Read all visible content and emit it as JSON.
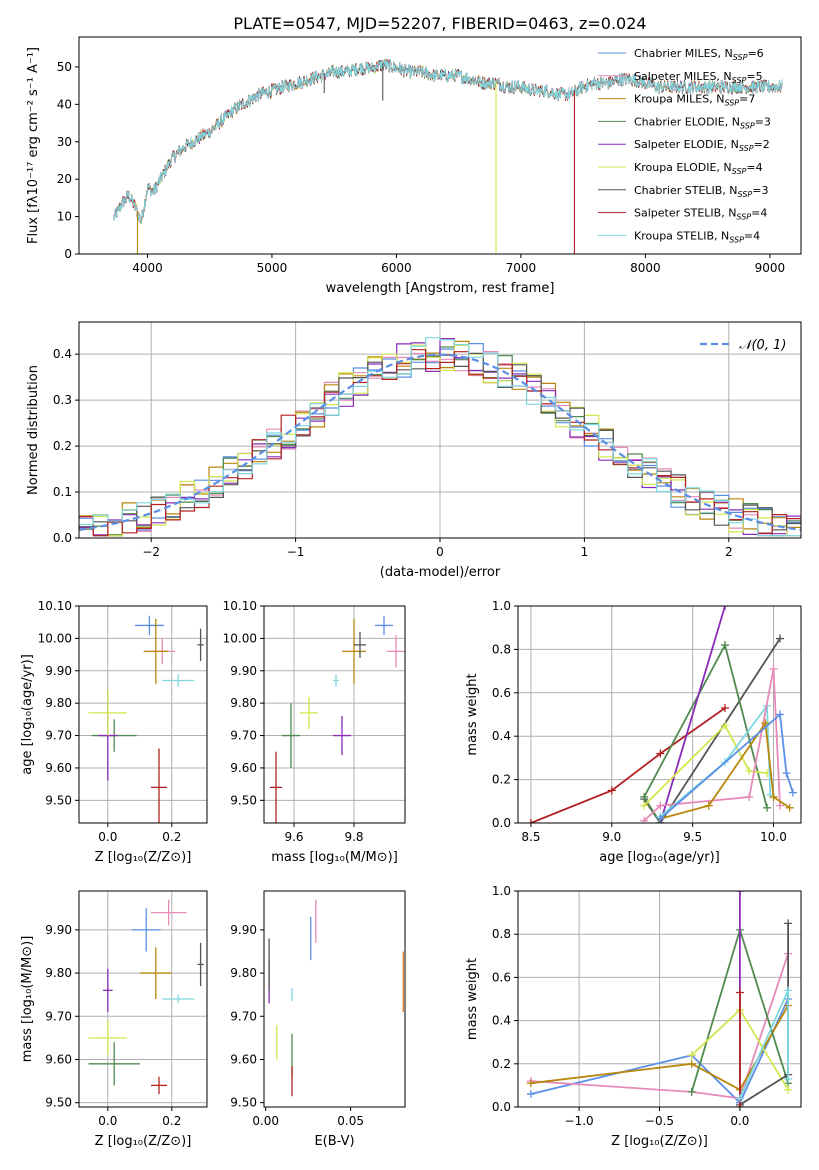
{
  "title": "PLATE=0547, MJD=52207, FIBERID=0463, z=0.024",
  "colors": {
    "Chabrier MILES": "#5b8ee6",
    "Salpeter MILES": "#e68ab8",
    "Kroupa MILES": "#b8860b",
    "Chabrier ELODIE": "#4f8a4f",
    "Salpeter ELODIE": "#8b2bb8",
    "Kroupa ELODIE": "#d4e64f",
    "Chabrier STELIB": "#555555",
    "Salpeter STELIB": "#b22222",
    "Kroupa STELIB": "#7fd8e0",
    "orange": "#e07b2a",
    "gaussian": "#5b8ee6",
    "grid": "#b0b0b0"
  },
  "chart_data": [
    {
      "id": "spectrum",
      "type": "line",
      "xlabel": "wavelength [Angstrom, rest frame]",
      "ylabel": "Flux [fλ10⁻¹⁷ erg cm⁻² s⁻¹ A⁻¹]",
      "xlim": [
        3450,
        9250
      ],
      "ylim": [
        0,
        58
      ],
      "xticks": [
        4000,
        5000,
        6000,
        7000,
        8000,
        9000
      ],
      "yticks": [
        0,
        10,
        20,
        30,
        40,
        50
      ],
      "grid": false,
      "legend_position": "top-right",
      "legend": [
        {
          "label": "Chabrier MILES, N",
          "sub": "SSP",
          "eq": "=6"
        },
        {
          "label": "Salpeter MILES, N",
          "sub": "SSP",
          "eq": "=5"
        },
        {
          "label": "Kroupa MILES, N",
          "sub": "SSP",
          "eq": "=7"
        },
        {
          "label": "Chabrier ELODIE, N",
          "sub": "SSP",
          "eq": "=3"
        },
        {
          "label": "Salpeter ELODIE, N",
          "sub": "SSP",
          "eq": "=2"
        },
        {
          "label": "Kroupa ELODIE, N",
          "sub": "SSP",
          "eq": "=4"
        },
        {
          "label": "Chabrier STELIB, N",
          "sub": "SSP",
          "eq": "=3"
        },
        {
          "label": "Salpeter STELIB, N",
          "sub": "SSP",
          "eq": "=4"
        },
        {
          "label": "Kroupa STELIB, N",
          "sub": "SSP",
          "eq": "=4"
        }
      ],
      "continuum": {
        "x": [
          3730,
          3800,
          3850,
          3900,
          3950,
          4000,
          4050,
          4100,
          4200,
          4300,
          4400,
          4500,
          4600,
          4700,
          4800,
          4900,
          5000,
          5100,
          5200,
          5300,
          5400,
          5500,
          5600,
          5700,
          5800,
          5900,
          6000,
          6100,
          6200,
          6300,
          6400,
          6500,
          6600,
          6700,
          6800,
          6900,
          7000,
          7100,
          7200,
          7300,
          7400,
          7500,
          7600,
          7700,
          7800,
          7900,
          8000,
          8100,
          8200,
          8300,
          8400,
          8500,
          8600,
          8700,
          8800,
          8900,
          9000,
          9100
        ],
        "y": [
          10,
          14,
          16,
          13,
          9,
          18,
          17,
          20,
          26,
          29,
          31,
          33,
          36,
          39,
          41,
          43,
          44,
          45,
          46,
          47,
          48,
          49,
          49,
          50,
          50,
          51,
          50,
          49,
          49,
          48,
          48,
          48,
          47,
          46,
          46,
          45,
          45,
          44,
          44,
          43,
          43,
          45,
          46,
          46,
          47,
          47,
          46,
          45,
          45,
          45,
          45,
          45,
          45,
          45,
          45,
          45,
          45,
          45
        ]
      },
      "spikes": [
        {
          "x": 3920,
          "y": 0,
          "series": "Kroupa MILES"
        },
        {
          "x": 5420,
          "y": 43,
          "series": "Chabrier STELIB"
        },
        {
          "x": 5890,
          "y": 41,
          "series": "Chabrier STELIB"
        },
        {
          "x": 6800,
          "y": 0,
          "series": "Kroupa ELODIE"
        },
        {
          "x": 7430,
          "y": 0,
          "series": "Salpeter STELIB"
        }
      ]
    },
    {
      "id": "residuals",
      "type": "histogram",
      "xlabel": "(data-model)/error",
      "ylabel": "Normed distribution",
      "xlim": [
        -2.5,
        2.5
      ],
      "ylim": [
        0,
        0.47
      ],
      "xticks": [
        -2,
        -1,
        0,
        1,
        2
      ],
      "yticks": [
        0.0,
        0.1,
        0.2,
        0.3,
        0.4
      ],
      "grid": true,
      "bin_width": 0.1,
      "legend": [
        "𝒩(0, 1)"
      ],
      "gaussian": {
        "mu": 0,
        "sigma": 1
      }
    },
    {
      "id": "age_vs_Z",
      "type": "errorbar",
      "xlabel": "Z [log₁₀(Z/Z⊙)]",
      "ylabel": "age  [log₁₀(age/yr)]",
      "xlim": [
        -0.09,
        0.31
      ],
      "ylim": [
        9.43,
        10.1
      ],
      "xticks": [
        0.0,
        0.2
      ],
      "yticks": [
        9.5,
        9.6,
        9.7,
        9.8,
        9.9,
        10.0,
        10.1
      ],
      "grid": true,
      "points": [
        {
          "series": "Chabrier MILES",
          "x": 0.13,
          "y": 10.04,
          "xerr": 0.045,
          "yerr": 0.03
        },
        {
          "series": "Salpeter MILES",
          "x": 0.17,
          "y": 9.96,
          "xerr": 0.04,
          "yerr": 0.04
        },
        {
          "series": "Kroupa MILES",
          "x": 0.15,
          "y": 9.96,
          "xerr": 0.038,
          "yerr": 0.1
        },
        {
          "series": "Chabrier ELODIE",
          "x": 0.02,
          "y": 9.7,
          "xerr": 0.07,
          "yerr": 0.05
        },
        {
          "series": "Salpeter ELODIE",
          "x": 0.0,
          "y": 9.7,
          "xerr": 0.03,
          "yerr": 0.14
        },
        {
          "series": "Kroupa ELODIE",
          "x": 0.0,
          "y": 9.77,
          "xerr": 0.06,
          "yerr": 0.07
        },
        {
          "series": "Chabrier STELIB",
          "x": 0.29,
          "y": 9.98,
          "xerr": 0.01,
          "yerr": 0.05
        },
        {
          "series": "Salpeter STELIB",
          "x": 0.16,
          "y": 9.54,
          "xerr": 0.025,
          "yerr": 0.12
        },
        {
          "series": "Kroupa STELIB",
          "x": 0.22,
          "y": 9.87,
          "xerr": 0.05,
          "yerr": 0.02
        }
      ]
    },
    {
      "id": "age_vs_mass",
      "type": "errorbar",
      "xlabel": "mass [log₁₀(M/M⊙)]",
      "ylabel": "",
      "xlim": [
        9.5,
        9.97
      ],
      "ylim": [
        9.43,
        10.1
      ],
      "xticks": [
        9.6,
        9.8
      ],
      "yticks": [
        9.5,
        9.6,
        9.7,
        9.8,
        9.9,
        10.0,
        10.1
      ],
      "grid": true,
      "points": [
        {
          "series": "Chabrier MILES",
          "x": 9.9,
          "y": 10.04,
          "xerr": 0.03,
          "yerr": 0.03
        },
        {
          "series": "Salpeter MILES",
          "x": 9.94,
          "y": 9.96,
          "xerr": 0.03,
          "yerr": 0.05
        },
        {
          "series": "Kroupa MILES",
          "x": 9.8,
          "y": 9.96,
          "xerr": 0.04,
          "yerr": 0.1
        },
        {
          "series": "Chabrier ELODIE",
          "x": 9.59,
          "y": 9.7,
          "xerr": 0.03,
          "yerr": 0.1
        },
        {
          "series": "Salpeter ELODIE",
          "x": 9.76,
          "y": 9.7,
          "xerr": 0.03,
          "yerr": 0.06
        },
        {
          "series": "Kroupa ELODIE",
          "x": 9.65,
          "y": 9.77,
          "xerr": 0.03,
          "yerr": 0.05
        },
        {
          "series": "Chabrier STELIB",
          "x": 9.82,
          "y": 9.98,
          "xerr": 0.02,
          "yerr": 0.04
        },
        {
          "series": "Salpeter STELIB",
          "x": 9.54,
          "y": 9.54,
          "xerr": 0.02,
          "yerr": 0.11
        },
        {
          "series": "Kroupa STELIB",
          "x": 9.74,
          "y": 9.87,
          "xerr": 0.01,
          "yerr": 0.02
        }
      ]
    },
    {
      "id": "mass_weight_vs_age",
      "type": "line",
      "xlabel": "age  [log₁₀(age/yr)]",
      "ylabel": "mass weight",
      "xlim": [
        8.42,
        10.17
      ],
      "ylim": [
        0,
        1.0
      ],
      "xticks": [
        8.5,
        9.0,
        9.5,
        10.0
      ],
      "yticks": [
        0.0,
        0.2,
        0.4,
        0.6,
        0.8,
        1.0
      ],
      "grid": true,
      "series": [
        {
          "name": "Salpeter STELIB",
          "x": [
            8.5,
            9.0,
            9.3,
            9.7
          ],
          "y": [
            0.0,
            0.15,
            0.32,
            0.53
          ]
        },
        {
          "name": "Chabrier STELIB",
          "x": [
            9.2,
            9.3,
            10.04
          ],
          "y": [
            0.11,
            0.0,
            0.85
          ]
        },
        {
          "name": "Chabrier ELODIE",
          "x": [
            9.3,
            9.2,
            9.7,
            9.96
          ],
          "y": [
            0.0,
            0.12,
            0.82,
            0.07
          ]
        },
        {
          "name": "Salpeter ELODIE",
          "x": [
            9.3,
            9.7
          ],
          "y": [
            0.0,
            1.0
          ]
        },
        {
          "name": "Kroupa ELODIE",
          "x": [
            9.2,
            9.7,
            9.85,
            9.96
          ],
          "y": [
            0.08,
            0.45,
            0.24,
            0.23
          ]
        },
        {
          "name": "Kroupa STELIB",
          "x": [
            9.3,
            9.7,
            9.96,
            9.98
          ],
          "y": [
            0.03,
            0.28,
            0.54,
            0.13
          ]
        },
        {
          "name": "Salpeter MILES",
          "x": [
            9.2,
            9.3,
            9.85,
            10.0,
            10.04
          ],
          "y": [
            0.01,
            0.08,
            0.12,
            0.71,
            0.08
          ]
        },
        {
          "name": "Kroupa MILES",
          "x": [
            9.3,
            9.6,
            9.95,
            10.0,
            10.1
          ],
          "y": [
            0.02,
            0.08,
            0.46,
            0.12,
            0.07
          ]
        },
        {
          "name": "Chabrier MILES",
          "x": [
            9.3,
            10.04,
            10.08,
            10.12
          ],
          "y": [
            0.02,
            0.5,
            0.23,
            0.14
          ]
        }
      ]
    },
    {
      "id": "mass_vs_Z",
      "type": "errorbar",
      "xlabel": "Z [log₁₀(Z/Z⊙)]",
      "ylabel": "mass [log₁₀(M/M⊙)]",
      "xlim": [
        -0.09,
        0.31
      ],
      "ylim": [
        9.49,
        9.99
      ],
      "xticks": [
        0.0,
        0.2
      ],
      "yticks": [
        9.5,
        9.6,
        9.7,
        9.8,
        9.9
      ],
      "grid": true,
      "points": [
        {
          "series": "Chabrier MILES",
          "x": 0.12,
          "y": 9.9,
          "xerr": 0.045,
          "yerr": 0.05
        },
        {
          "series": "Salpeter MILES",
          "x": 0.19,
          "y": 9.94,
          "xerr": 0.055,
          "yerr": 0.03
        },
        {
          "series": "Kroupa MILES",
          "x": 0.15,
          "y": 9.8,
          "xerr": 0.05,
          "yerr": 0.06
        },
        {
          "series": "Chabrier ELODIE",
          "x": 0.02,
          "y": 9.59,
          "xerr": 0.08,
          "yerr": 0.05
        },
        {
          "series": "Salpeter ELODIE",
          "x": 0.0,
          "y": 9.76,
          "xerr": 0.015,
          "yerr": 0.05
        },
        {
          "series": "Kroupa ELODIE",
          "x": 0.0,
          "y": 9.65,
          "xerr": 0.06,
          "yerr": 0.04
        },
        {
          "series": "Chabrier STELIB",
          "x": 0.29,
          "y": 9.82,
          "xerr": 0.01,
          "yerr": 0.05
        },
        {
          "series": "Salpeter STELIB",
          "x": 0.16,
          "y": 9.54,
          "xerr": 0.025,
          "yerr": 0.02
        },
        {
          "series": "Kroupa STELIB",
          "x": 0.22,
          "y": 9.74,
          "xerr": 0.05,
          "yerr": 0.01
        }
      ]
    },
    {
      "id": "mass_vs_ebv",
      "type": "errorbar",
      "xlabel": "E(B-V)",
      "ylabel": "",
      "xlim": [
        -0.001,
        0.082
      ],
      "ylim": [
        9.49,
        9.99
      ],
      "xticks": [
        0.0,
        0.05
      ],
      "yticks": [
        9.5,
        9.6,
        9.7,
        9.8,
        9.9
      ],
      "grid": false,
      "points": [
        {
          "series": "Chabrier MILES",
          "x": 0.0265,
          "y": 9.88,
          "yerr": 0.05
        },
        {
          "series": "Salpeter MILES",
          "x": 0.0295,
          "y": 9.92,
          "yerr": 0.05
        },
        {
          "series": "Orange",
          "x": 0.081,
          "y": 9.78,
          "yerr": 0.07
        },
        {
          "series": "Chabrier ELODIE",
          "x": 0.0155,
          "y": 9.61,
          "yerr": 0.05
        },
        {
          "series": "Salpeter ELODIE",
          "x": 0.002,
          "y": 9.78,
          "yerr": 0.05
        },
        {
          "series": "Kroupa ELODIE",
          "x": 0.0065,
          "y": 9.64,
          "yerr": 0.04
        },
        {
          "series": "Chabrier STELIB",
          "x": 0.002,
          "y": 9.82,
          "yerr": 0.06
        },
        {
          "series": "Salpeter STELIB",
          "x": 0.0155,
          "y": 9.55,
          "yerr": 0.035
        },
        {
          "series": "Kroupa STELIB",
          "x": 0.0155,
          "y": 9.75,
          "yerr": 0.015
        }
      ]
    },
    {
      "id": "mass_weight_vs_Z",
      "type": "line",
      "xlabel": "Z [log₁₀(Z/Z⊙)]",
      "ylabel": "mass weight",
      "xlim": [
        -1.38,
        0.38
      ],
      "ylim": [
        0,
        1.0
      ],
      "xticks": [
        -1.0,
        -0.5,
        0.0
      ],
      "yticks": [
        0.0,
        0.2,
        0.4,
        0.6,
        0.8,
        1.0
      ],
      "grid": true,
      "series": [
        {
          "name": "Chabrier MILES",
          "x": [
            -1.3,
            -0.3,
            0.0,
            0.3
          ],
          "y": [
            0.06,
            0.24,
            0.02,
            0.5
          ]
        },
        {
          "name": "Salpeter MILES",
          "x": [
            -1.3,
            -0.3,
            0.0,
            0.3
          ],
          "y": [
            0.12,
            0.07,
            0.04,
            0.71
          ]
        },
        {
          "name": "Kroupa MILES",
          "x": [
            -1.3,
            -0.3,
            0.0,
            0.3
          ],
          "y": [
            0.11,
            0.2,
            0.08,
            0.47
          ]
        },
        {
          "name": "Chabrier ELODIE",
          "x": [
            -0.3,
            0.0,
            0.3
          ],
          "y": [
            0.07,
            0.82,
            0.11
          ]
        },
        {
          "name": "Salpeter ELODIE",
          "x": [
            0.0,
            0.0
          ],
          "y": [
            1.0,
            0.0
          ]
        },
        {
          "name": "Kroupa ELODIE",
          "x": [
            -0.3,
            0.0,
            0.3
          ],
          "y": [
            0.24,
            0.45,
            0.08
          ]
        },
        {
          "name": "Chabrier STELIB",
          "x": [
            0.0,
            0.3,
            0.3
          ],
          "y": [
            0.01,
            0.15,
            0.85
          ]
        },
        {
          "name": "Salpeter STELIB",
          "x": [
            0.0,
            0.0
          ],
          "y": [
            0.0,
            0.53
          ]
        },
        {
          "name": "Kroupa STELIB",
          "x": [
            0.0,
            0.3,
            0.3
          ],
          "y": [
            0.04,
            0.54,
            0.13
          ]
        }
      ]
    }
  ]
}
